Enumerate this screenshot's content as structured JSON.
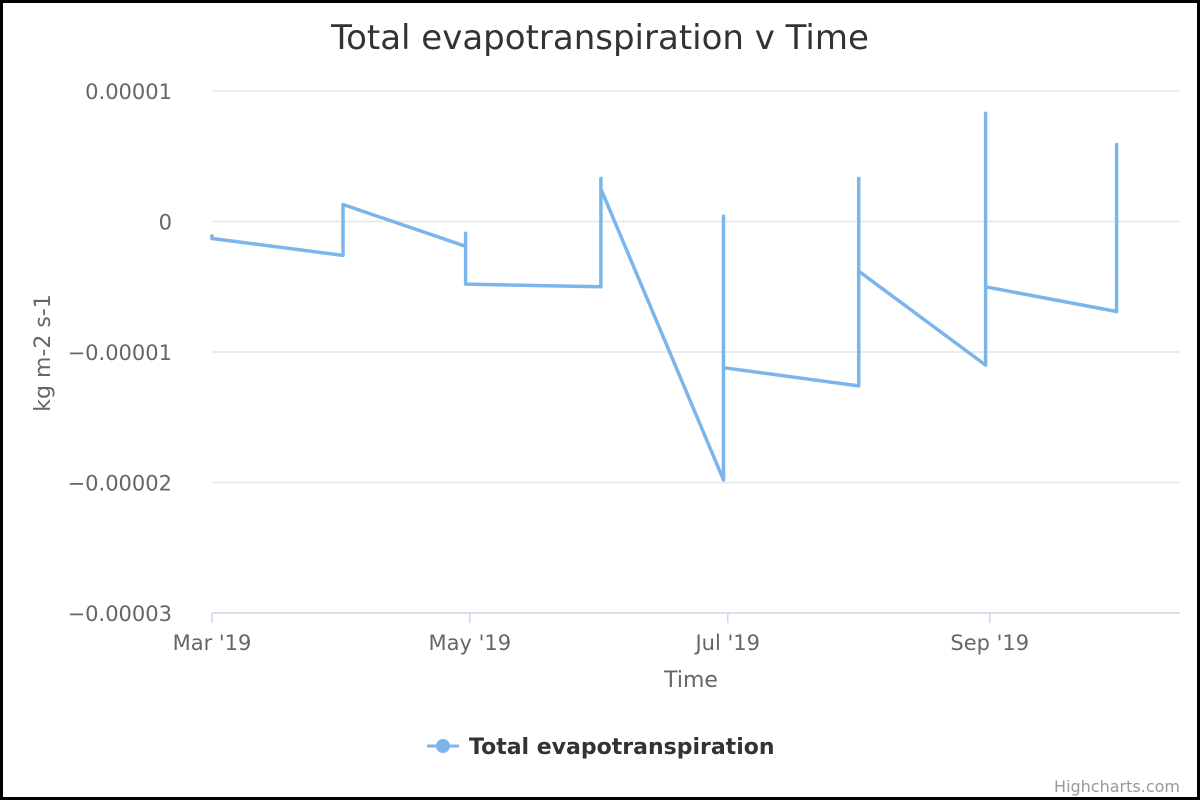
{
  "chart_data": {
    "type": "line",
    "title": "Total evapotranspiration v Time",
    "xlabel": "Time",
    "ylabel": "kg m-2 s-1",
    "ylim": [
      -3e-05,
      1e-05
    ],
    "y_ticks": [
      {
        "value": 1e-05,
        "label": "0.00001"
      },
      {
        "value": 0,
        "label": "0"
      },
      {
        "value": -1e-05,
        "label": "−0.00001"
      },
      {
        "value": -2e-05,
        "label": "−0.00002"
      },
      {
        "value": -3e-05,
        "label": "−0.00003"
      }
    ],
    "x_range": [
      "2019-03-01",
      "2019-10-16"
    ],
    "x_ticks": [
      {
        "value": "2019-03-01",
        "label": "Mar '19"
      },
      {
        "value": "2019-05-01",
        "label": "May '19"
      },
      {
        "value": "2019-07-01",
        "label": "Jul '19"
      },
      {
        "value": "2019-09-01",
        "label": "Sep '19"
      }
    ],
    "grid": true,
    "legend_position": "bottom-center",
    "series": [
      {
        "name": "Total evapotranspiration",
        "color": "#7cb5ec",
        "points": [
          [
            "2019-03-01",
            -1.1e-06
          ],
          [
            "2019-03-01",
            -1.3e-06
          ],
          [
            "2019-04-01",
            -2.6e-06
          ],
          [
            "2019-04-01",
            1.3e-06
          ],
          [
            "2019-04-30",
            -1.9e-06
          ],
          [
            "2019-04-30",
            -9e-07
          ],
          [
            "2019-04-30",
            -4.8e-06
          ],
          [
            "2019-06-01",
            -5e-06
          ],
          [
            "2019-06-01",
            3.3e-06
          ],
          [
            "2019-06-01",
            2.5e-06
          ],
          [
            "2019-06-30",
            -1.98e-05
          ],
          [
            "2019-06-30",
            4e-07
          ],
          [
            "2019-06-30",
            -1.12e-05
          ],
          [
            "2019-08-01",
            -1.26e-05
          ],
          [
            "2019-08-01",
            3.3e-06
          ],
          [
            "2019-08-01",
            -6.8e-06
          ],
          [
            "2019-08-01",
            -3.8e-06
          ],
          [
            "2019-08-31",
            -1.1e-05
          ],
          [
            "2019-08-31",
            8.3e-06
          ],
          [
            "2019-08-31",
            -5e-06
          ],
          [
            "2019-10-01",
            -6.9e-06
          ],
          [
            "2019-10-01",
            5.9e-06
          ],
          [
            "2019-10-01",
            -4.1e-06
          ]
        ]
      }
    ]
  },
  "credits": "Highcharts.com"
}
